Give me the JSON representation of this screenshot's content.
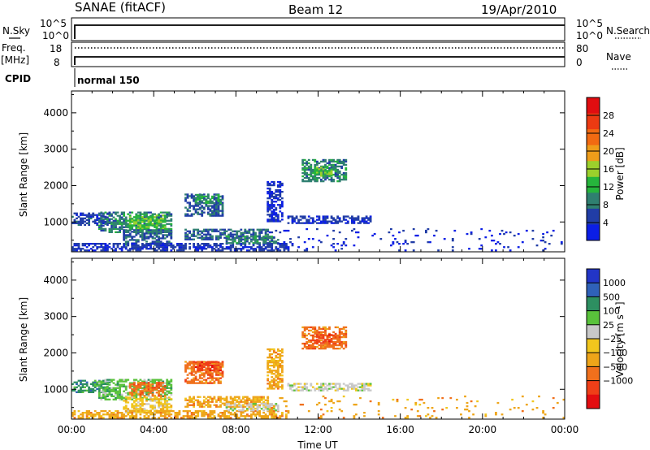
{
  "header": {
    "station": "SANAE (fitACF)",
    "beam": "Beam 12",
    "date": "19/Apr/2010"
  },
  "strip": {
    "nsky_label": "N.Sky",
    "nsky_ticks": [
      "10^5",
      "10^0"
    ],
    "nsearch_label": "N.Search",
    "nsearch_ticks": [
      "10^5",
      "10^0"
    ],
    "freq_label": "Freq.",
    "freq_unit": "[MHz]",
    "freq_ticks": [
      "18",
      "8"
    ],
    "nave_label": "Nave",
    "nave_ticks": [
      "80",
      "0"
    ],
    "cpid_label": "CPID",
    "cpid_value": "normal 150"
  },
  "colors": {
    "power": [
      "#0b1ee6",
      "#213da6",
      "#2f7f70",
      "#26b53c",
      "#9cd02c",
      "#ef9d1a",
      "#f26a12",
      "#ec3a12",
      "#e10d10"
    ],
    "velocity": [
      "#2235c7",
      "#2f61b9",
      "#2d8f61",
      "#59c23b",
      "#c8c8c8",
      "#f1c61d",
      "#eea519",
      "#f0701c",
      "#ef3f18",
      "#e30d10"
    ]
  },
  "chart_data": [
    {
      "type": "heatmap",
      "panel": "power",
      "ylabel": "Slant Range [km]",
      "ytick_labels": [
        "1000",
        "2000",
        "3000",
        "4000"
      ],
      "ylim": [
        180,
        4600
      ],
      "xlim": [
        0,
        24
      ],
      "colorbar_label": "Power [dB]",
      "colorbar_ticks": [
        "4",
        "8",
        "12",
        "16",
        "20",
        "24",
        "28"
      ],
      "colorbar_range": [
        0,
        32
      ],
      "patches": [
        {
          "t0": 0.0,
          "t1": 1.9,
          "r0": 900,
          "r1": 1250,
          "v": 6
        },
        {
          "t0": 1.3,
          "t1": 4.8,
          "r0": 700,
          "r1": 1250,
          "v": 10
        },
        {
          "t0": 2.8,
          "t1": 4.5,
          "r0": 800,
          "r1": 1200,
          "v": 15
        },
        {
          "t0": 2.5,
          "t1": 4.8,
          "r0": 350,
          "r1": 800,
          "v": 8
        },
        {
          "t0": 0.0,
          "t1": 10.5,
          "r0": 200,
          "r1": 400,
          "v": 5
        },
        {
          "t0": 5.5,
          "t1": 7.3,
          "r0": 1150,
          "r1": 1750,
          "v": 7
        },
        {
          "t0": 6.0,
          "t1": 7.2,
          "r0": 1500,
          "r1": 1750,
          "v": 12
        },
        {
          "t0": 5.5,
          "t1": 9.5,
          "r0": 500,
          "r1": 800,
          "v": 8
        },
        {
          "t0": 7.5,
          "t1": 10.0,
          "r0": 400,
          "r1": 600,
          "v": 10
        },
        {
          "t0": 9.5,
          "t1": 10.2,
          "r0": 1000,
          "r1": 2100,
          "v": 4
        },
        {
          "t0": 11.2,
          "t1": 13.3,
          "r0": 2100,
          "r1": 2700,
          "v": 10
        },
        {
          "t0": 11.8,
          "t1": 12.6,
          "r0": 2250,
          "r1": 2500,
          "v": 15
        },
        {
          "t0": 10.5,
          "t1": 14.5,
          "r0": 950,
          "r1": 1150,
          "v": 5
        },
        {
          "t0": 9.5,
          "t1": 24.0,
          "r0": 200,
          "r1": 800,
          "v": 4
        }
      ]
    },
    {
      "type": "heatmap",
      "panel": "velocity",
      "ylabel": "Slant Range [km]",
      "ytick_labels": [
        "1000",
        "2000",
        "3000",
        "4000"
      ],
      "ylim": [
        180,
        4600
      ],
      "xlim": [
        0,
        24
      ],
      "xtick_labels": [
        "00:00",
        "04:00",
        "08:00",
        "12:00",
        "16:00",
        "20:00",
        "00:00"
      ],
      "xlabel": "Time UT",
      "colorbar_label": "Velocity [m s⁻¹]",
      "colorbar_ticks": [
        "1000",
        "500",
        "100",
        "25",
        "−25",
        "−100",
        "−500",
        "−1000"
      ],
      "patches": [
        {
          "t0": 0.0,
          "t1": 1.9,
          "r0": 900,
          "r1": 1250,
          "c": 2
        },
        {
          "t0": 1.3,
          "t1": 4.8,
          "r0": 700,
          "r1": 1250,
          "c": 3
        },
        {
          "t0": 2.8,
          "t1": 4.5,
          "r0": 800,
          "r1": 1200,
          "c": 7
        },
        {
          "t0": 2.5,
          "t1": 4.8,
          "r0": 350,
          "r1": 800,
          "c": 5
        },
        {
          "t0": 0.0,
          "t1": 10.5,
          "r0": 200,
          "r1": 400,
          "c": 6
        },
        {
          "t0": 5.5,
          "t1": 7.3,
          "r0": 1150,
          "r1": 1750,
          "c": 7
        },
        {
          "t0": 6.0,
          "t1": 7.2,
          "r0": 1500,
          "r1": 1750,
          "c": 8
        },
        {
          "t0": 5.5,
          "t1": 9.5,
          "r0": 500,
          "r1": 800,
          "c": 6
        },
        {
          "t0": 7.5,
          "t1": 10.0,
          "r0": 400,
          "r1": 600,
          "c": 4
        },
        {
          "t0": 9.5,
          "t1": 10.2,
          "r0": 1000,
          "r1": 2100,
          "c": 6
        },
        {
          "t0": 11.2,
          "t1": 13.3,
          "r0": 2100,
          "r1": 2700,
          "c": 7
        },
        {
          "t0": 11.8,
          "t1": 12.6,
          "r0": 2250,
          "r1": 2500,
          "c": 8
        },
        {
          "t0": 10.5,
          "t1": 14.5,
          "r0": 950,
          "r1": 1150,
          "c": 4
        },
        {
          "t0": 9.5,
          "t1": 24.0,
          "r0": 200,
          "r1": 800,
          "c": 6
        }
      ]
    }
  ]
}
